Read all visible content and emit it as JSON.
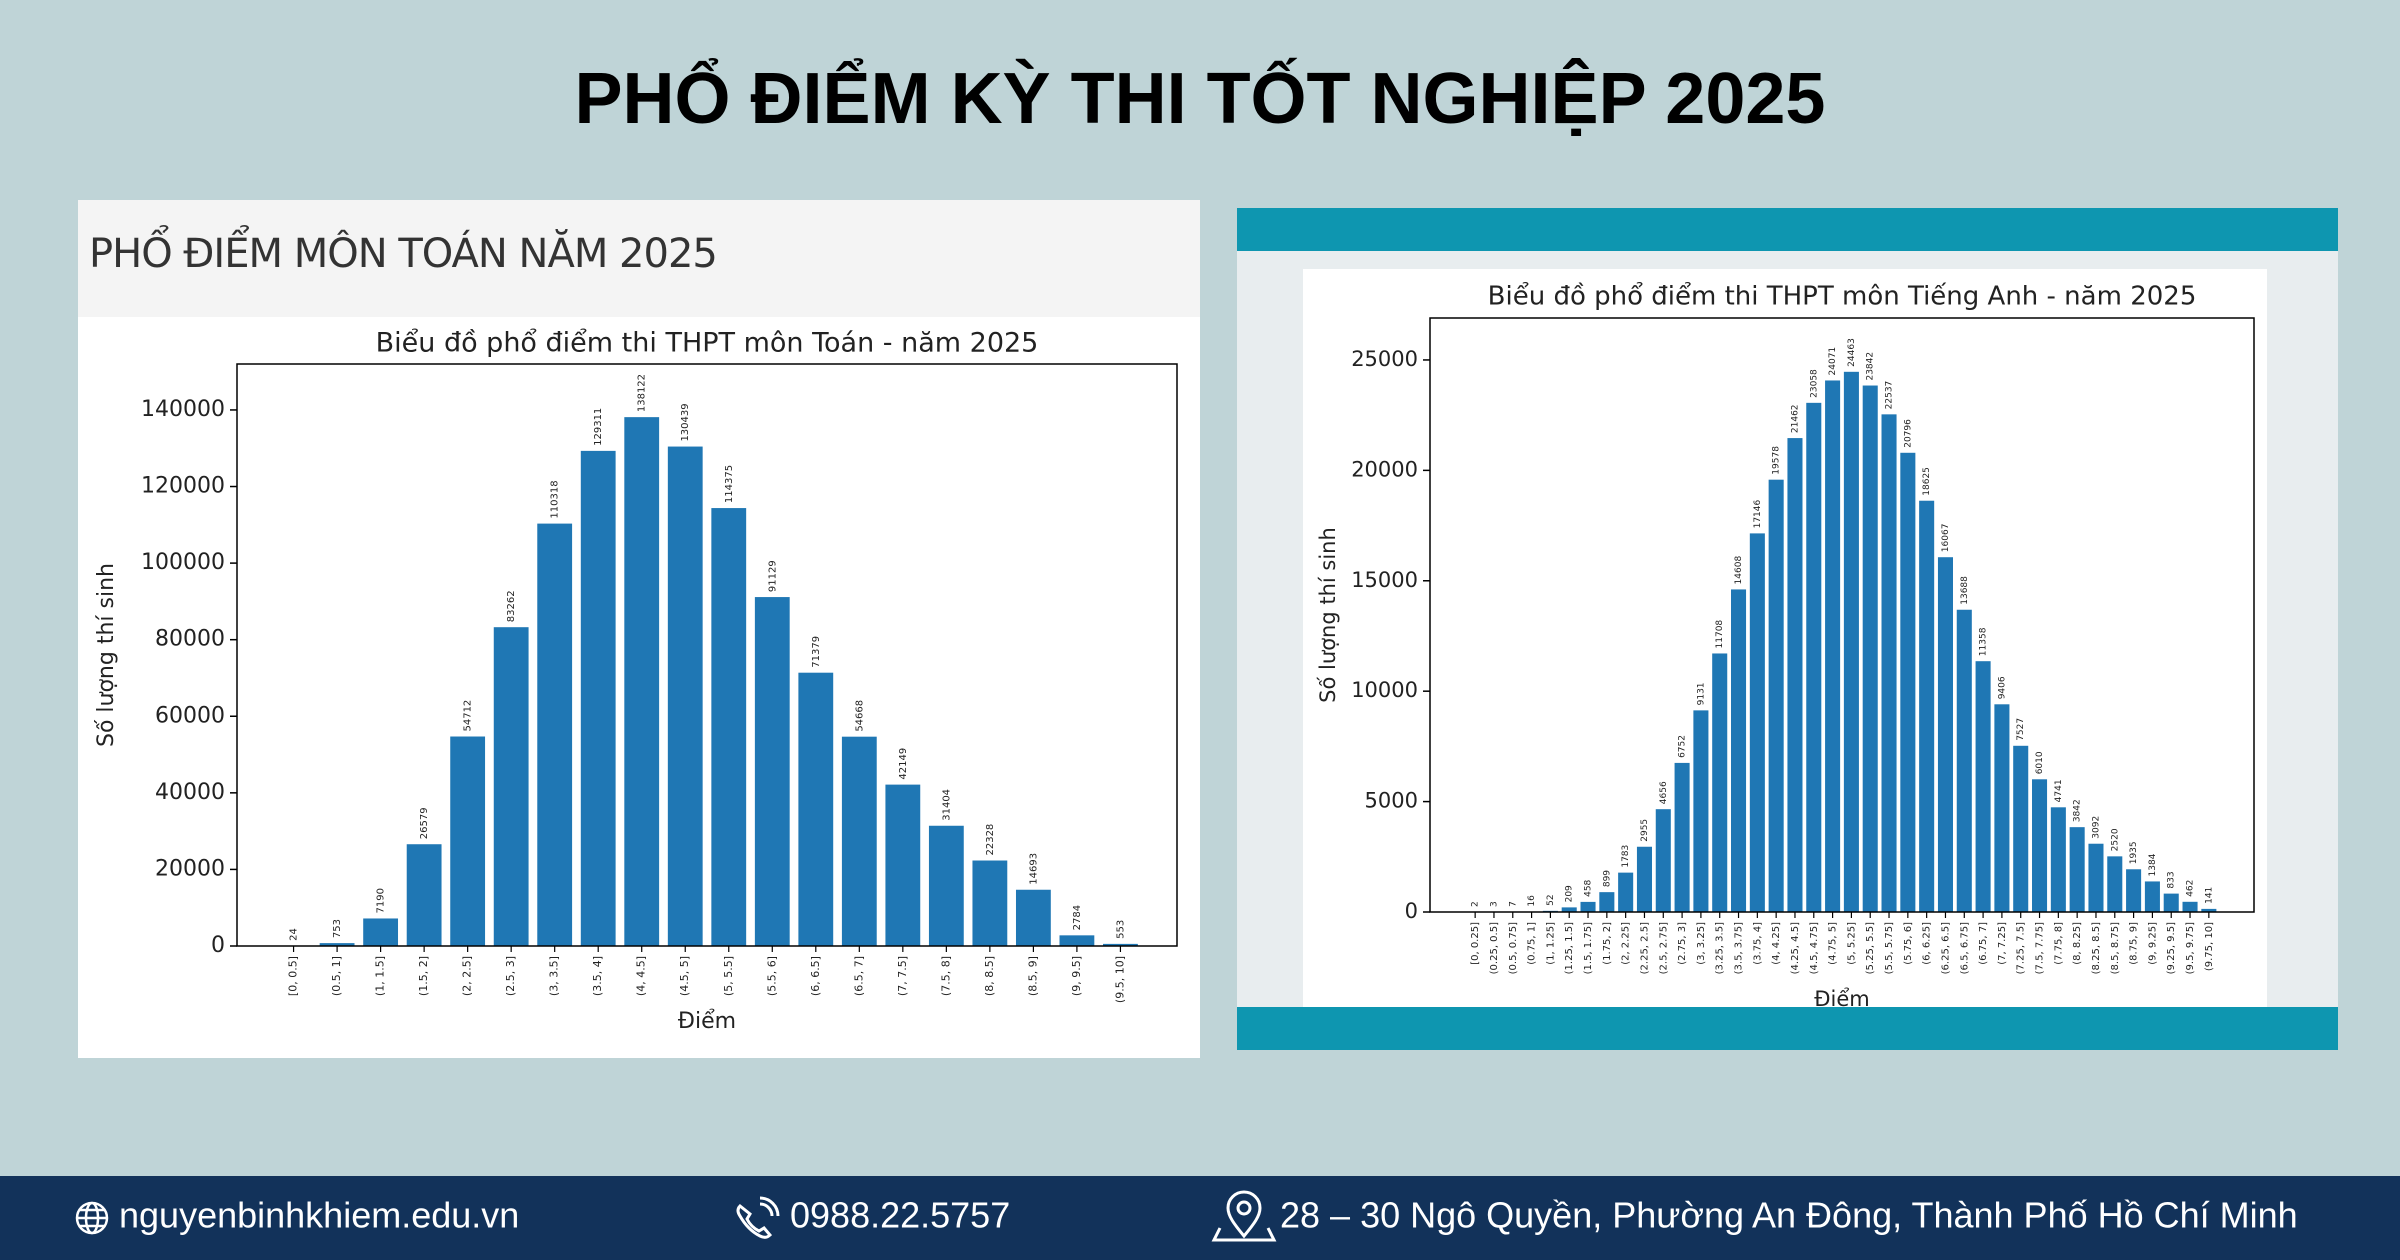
{
  "title": "PHỔ ĐIỂM KỲ THI TỐT NGHIỆP 2025",
  "footer": {
    "website": "nguyenbinhkhiem.edu.vn",
    "phone": "0988.22.5757",
    "address": "28 – 30 Ngô Quyền, Phường An Đông, Thành Phố Hồ Chí Minh"
  },
  "chart_data": [
    {
      "type": "bar",
      "heading": "PHỔ ĐIỂM MÔN TOÁN NĂM 2025",
      "title": "Biểu đồ phổ điểm thi THPT môn Toán - năm 2025",
      "xlabel": "Điểm",
      "ylabel": "Số lượng thí sinh",
      "categories": [
        "[0, 0.5]",
        "(0.5, 1]",
        "(1, 1.5]",
        "(1.5, 2]",
        "(2, 2.5]",
        "(2.5, 3]",
        "(3, 3.5]",
        "(3.5, 4]",
        "(4, 4.5]",
        "(4.5, 5]",
        "(5, 5.5]",
        "(5.5, 6]",
        "(6, 6.5]",
        "(6.5, 7]",
        "(7, 7.5]",
        "(7.5, 8]",
        "(8, 8.5]",
        "(8.5, 9]",
        "(9, 9.5]",
        "(9.5, 10]"
      ],
      "values": [
        24,
        753,
        7190,
        26579,
        54712,
        83262,
        110318,
        129311,
        138122,
        130439,
        114375,
        91129,
        71379,
        54668,
        42149,
        31404,
        22328,
        14693,
        2784,
        553
      ],
      "color": "#1f77b4",
      "ylim": [
        0,
        152000
      ],
      "yticks": [
        0,
        20000,
        40000,
        60000,
        80000,
        100000,
        120000,
        140000
      ]
    },
    {
      "type": "bar",
      "title": "Biểu đồ phổ điểm thi THPT môn Tiếng Anh - năm 2025",
      "xlabel": "Điểm",
      "ylabel": "Số lượng thí sinh",
      "categories": [
        "[0, 0.25]",
        "(0.25, 0.5]",
        "(0.5, 0.75]",
        "(0.75, 1]",
        "(1, 1.25]",
        "(1.25, 1.5]",
        "(1.5, 1.75]",
        "(1.75, 2]",
        "(2, 2.25]",
        "(2.25, 2.5]",
        "(2.5, 2.75]",
        "(2.75, 3]",
        "(3, 3.25]",
        "(3.25, 3.5]",
        "(3.5, 3.75]",
        "(3.75, 4]",
        "(4, 4.25]",
        "(4.25, 4.5]",
        "(4.5, 4.75]",
        "(4.75, 5]",
        "(5, 5.25]",
        "(5.25, 5.5]",
        "(5.5, 5.75]",
        "(5.75, 6]",
        "(6, 6.25]",
        "(6.25, 6.5]",
        "(6.5, 6.75]",
        "(6.75, 7]",
        "(7, 7.25]",
        "(7.25, 7.5]",
        "(7.5, 7.75]",
        "(7.75, 8]",
        "(8, 8.25]",
        "(8.25, 8.5]",
        "(8.5, 8.75]",
        "(8.75, 9]",
        "(9, 9.25]",
        "(9.25, 9.5]",
        "(9.5, 9.75]",
        "(9.75, 10]"
      ],
      "values": [
        2,
        3,
        7,
        16,
        52,
        209,
        458,
        899,
        1783,
        2955,
        4656,
        6752,
        9131,
        11708,
        14608,
        17146,
        19578,
        21462,
        23058,
        24071,
        24463,
        23842,
        22537,
        20796,
        18625,
        16067,
        13688,
        11358,
        9406,
        7527,
        6010,
        4741,
        3842,
        3092,
        2520,
        1935,
        1384,
        833,
        462,
        141
      ],
      "color": "#1f77b4",
      "ylim": [
        0,
        26900
      ],
      "yticks": [
        0,
        5000,
        10000,
        15000,
        20000,
        25000
      ]
    }
  ]
}
